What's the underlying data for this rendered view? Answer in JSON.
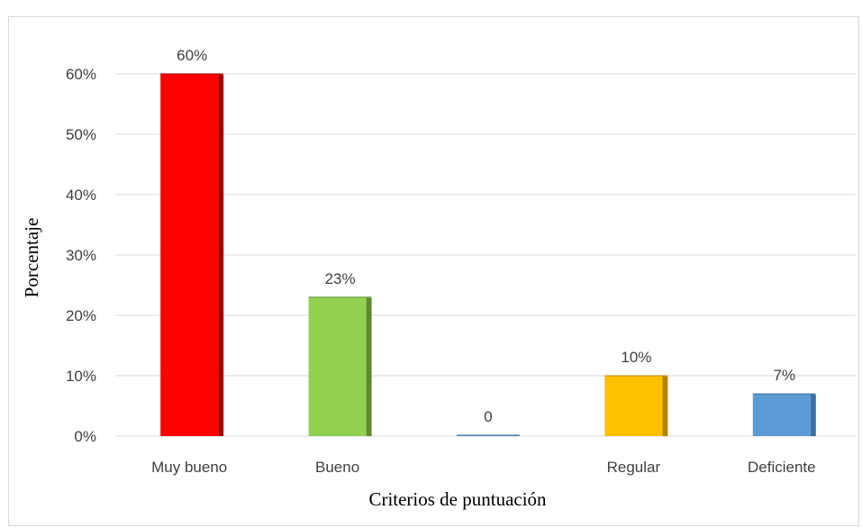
{
  "chart_data": {
    "type": "bar",
    "title": "",
    "xlabel": "Criterios de puntuación",
    "ylabel": "Porcentaje",
    "categories": [
      "Muy bueno",
      "Bueno",
      "",
      "Regular",
      "Deficiente"
    ],
    "values": [
      60,
      23,
      0,
      10,
      7
    ],
    "data_labels": [
      "60%",
      "23%",
      "0",
      "10%",
      "7%"
    ],
    "colors": [
      "#ff0000",
      "#92d050",
      "#5b9bd5",
      "#ffc000",
      "#5b9bd5"
    ],
    "side_colors": [
      "#a50000",
      "#5e8a2e",
      "#3e6f9e",
      "#b08400",
      "#3e6f9e"
    ],
    "ylim": [
      0,
      60
    ],
    "yticks": [
      0,
      10,
      20,
      30,
      40,
      50,
      60
    ],
    "ytick_labels": [
      "0%",
      "10%",
      "20%",
      "30%",
      "40%",
      "50%",
      "60%"
    ],
    "grid": true,
    "gridline_color": "#d9d9d9",
    "legend": "none"
  }
}
